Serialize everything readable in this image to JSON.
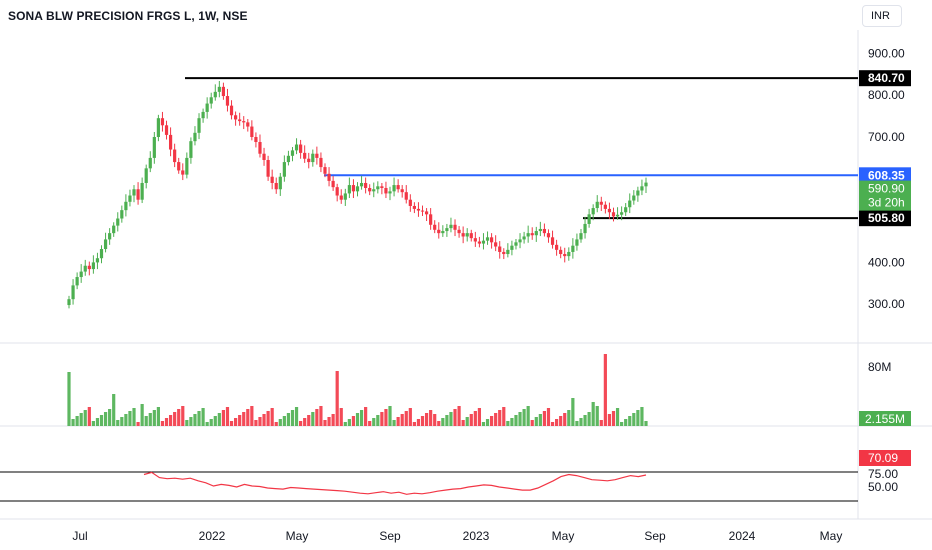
{
  "title": "SONA BLW PRECISION FRGS L, 1W, NSE",
  "currency": "INR",
  "colors": {
    "up": "#4caf50",
    "down": "#f23645",
    "blue": "#2962ff",
    "black": "#000000",
    "rsi": "#f23645",
    "grid": "#e0e3eb"
  },
  "chart_data": [
    {
      "type": "candlestick",
      "title": "SONA BLW PRECISION FRGS L, 1W, NSE",
      "y_ticks": [
        "900.00",
        "800.00",
        "700.00",
        "400.00",
        "300.00"
      ],
      "y_tick_values": [
        900,
        800,
        700,
        400,
        300
      ],
      "x_ticks": [
        "Jul",
        "2022",
        "May",
        "Sep",
        "2023",
        "May",
        "Sep",
        "2024",
        "May"
      ],
      "horizontal_lines": [
        {
          "value": 840.7,
          "label": "840.70",
          "color": "#000000"
        },
        {
          "value": 608.35,
          "label": "608.35",
          "color": "#2962ff"
        },
        {
          "value": 505.8,
          "label": "505.80",
          "color": "#000000"
        }
      ],
      "last_price": {
        "value": 590.9,
        "label": "590.90",
        "countdown": "3d 20h"
      },
      "candles_close": [
        312,
        345,
        365,
        378,
        392,
        384,
        400,
        410,
        432,
        455,
        470,
        488,
        505,
        525,
        545,
        560,
        575,
        550,
        590,
        625,
        650,
        700,
        745,
        728,
        705,
        670,
        640,
        620,
        610,
        650,
        690,
        710,
        745,
        760,
        780,
        795,
        808,
        820,
        798,
        775,
        752,
        742,
        738,
        735,
        725,
        700,
        688,
        660,
        645,
        605,
        590,
        575,
        605,
        640,
        655,
        668,
        682,
        662,
        648,
        640,
        660,
        650,
        628,
        612,
        595,
        580,
        560,
        550,
        565,
        585,
        570,
        582,
        590,
        578,
        570,
        575,
        582,
        578,
        565,
        570,
        585,
        575,
        568,
        550,
        535,
        528,
        524,
        522,
        515,
        490,
        478,
        470,
        475,
        482,
        490,
        478,
        470,
        462,
        470,
        458,
        450,
        445,
        452,
        460,
        448,
        438,
        425,
        420,
        430,
        440,
        448,
        455,
        462,
        470,
        465,
        475,
        480,
        470,
        460,
        442,
        430,
        420,
        415,
        425,
        440,
        455,
        470,
        492,
        515,
        530,
        545,
        538,
        528,
        520,
        510,
        514,
        520,
        532,
        548,
        560,
        572,
        582,
        590.9
      ],
      "volume_label": "80M",
      "volume_last": "2.155M",
      "rsi_ticks": [
        "75.00",
        "50.00"
      ],
      "rsi_last": "70.09",
      "rsi_values": [
        74,
        78,
        68,
        66,
        67,
        65,
        67,
        62,
        58,
        52,
        55,
        53,
        50,
        55,
        52,
        51,
        48,
        47,
        46,
        49,
        48,
        47,
        46,
        45,
        44,
        43,
        42,
        40,
        38,
        37,
        39,
        41,
        38,
        40,
        36,
        38,
        37,
        39,
        42,
        44,
        46,
        47,
        50,
        52,
        54,
        53,
        50,
        48,
        46,
        44,
        44,
        48,
        55,
        62,
        70,
        74,
        72,
        68,
        64,
        63,
        62,
        64,
        68,
        72,
        70,
        73
      ]
    }
  ]
}
